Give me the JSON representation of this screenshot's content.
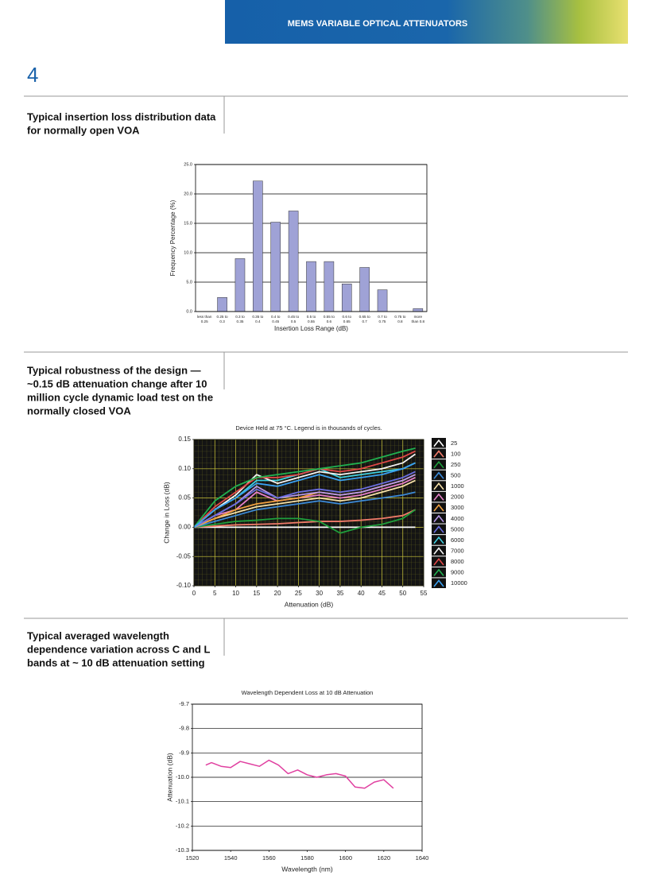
{
  "header": {
    "title": "MEMS VARIABLE OPTICAL ATTENUATORS"
  },
  "page_number": "4",
  "sections": [
    {
      "caption": [
        "Typical insertion loss distribution data",
        "for normally open VOA"
      ]
    },
    {
      "caption": [
        "Typical robustness of the design —",
        "~0.15 dB attenuation change after 10",
        "million cycle dynamic load test on the",
        "normally closed VOA"
      ]
    },
    {
      "caption": [
        "Typical averaged wavelength",
        "dependence variation across C and L",
        "bands at ~ 10 dB attenuation setting"
      ]
    }
  ],
  "chart_data": [
    {
      "type": "bar",
      "xlabel": "Insertion Loss Range (dB)",
      "ylabel": "Frequency Percentage (%)",
      "categories": [
        [
          "less than",
          "0.25"
        ],
        [
          "0.25 to",
          "0.3"
        ],
        [
          "0.3 to",
          "0.35"
        ],
        [
          "0.35 to",
          "0.4"
        ],
        [
          "0.4 to",
          "0.45"
        ],
        [
          "0.45 to",
          "0.5"
        ],
        [
          "0.5 to",
          "0.55"
        ],
        [
          "0.55 to",
          "0.6"
        ],
        [
          "0.6 to",
          "0.65"
        ],
        [
          "0.65 to",
          "0.7"
        ],
        [
          "0.7 to",
          "0.75"
        ],
        [
          "0.75 to",
          "0.8"
        ],
        [
          "more",
          "than 0.8"
        ]
      ],
      "values": [
        0,
        2.4,
        9.0,
        22.2,
        15.2,
        17.1,
        8.5,
        8.5,
        4.7,
        7.5,
        3.7,
        0,
        0.5
      ],
      "color": "#9fa2d6",
      "ylim": [
        0,
        25
      ],
      "yticks": [
        {
          "value": 0,
          "label": "0.0"
        },
        {
          "value": 5,
          "label": "5.0"
        },
        {
          "value": 10,
          "label": "10.0"
        },
        {
          "value": 15,
          "label": "15.0"
        },
        {
          "value": 20,
          "label": "20.0"
        },
        {
          "value": 25,
          "label": "25.0"
        }
      ],
      "grid": "y",
      "grid_color": "#000000"
    },
    {
      "type": "line",
      "title": "Device Held at 75 °C.  Legend is in thousands of cycles.",
      "xlabel": "Attenuation (dB)",
      "ylabel": "Change in Loss (dB)",
      "x": [
        0,
        5,
        10,
        15,
        20,
        25,
        30,
        35,
        40,
        45,
        50,
        53
      ],
      "series": [
        {
          "name": "25",
          "color": "#ffffff",
          "values": [
            0,
            0,
            0,
            0,
            0,
            0,
            0,
            0,
            0,
            0,
            0,
            0
          ]
        },
        {
          "name": "100",
          "color": "#f07b6a",
          "values": [
            0,
            0.002,
            0.004,
            0.005,
            0.006,
            0.008,
            0.01,
            0.01,
            0.012,
            0.015,
            0.02,
            0.03
          ]
        },
        {
          "name": "250",
          "color": "#1e9e3c",
          "values": [
            0,
            0.005,
            0.01,
            0.012,
            0.015,
            0.015,
            0.01,
            -0.01,
            0,
            0.005,
            0.015,
            0.03
          ]
        },
        {
          "name": "500",
          "color": "#3c8ad8",
          "values": [
            0,
            0.01,
            0.02,
            0.03,
            0.035,
            0.04,
            0.045,
            0.04,
            0.045,
            0.05,
            0.055,
            0.06
          ]
        },
        {
          "name": "1000",
          "color": "#f6e0a8",
          "values": [
            0,
            0.015,
            0.025,
            0.035,
            0.04,
            0.045,
            0.05,
            0.045,
            0.05,
            0.06,
            0.07,
            0.08
          ]
        },
        {
          "name": "2000",
          "color": "#e680c8",
          "values": [
            0,
            0.02,
            0.03,
            0.06,
            0.045,
            0.05,
            0.055,
            0.05,
            0.055,
            0.065,
            0.075,
            0.085
          ]
        },
        {
          "name": "3000",
          "color": "#f0a040",
          "values": [
            0,
            0.015,
            0.03,
            0.04,
            0.045,
            0.05,
            0.06,
            0.055,
            0.06,
            0.07,
            0.08,
            0.09
          ]
        },
        {
          "name": "4000",
          "color": "#b898e8",
          "values": [
            0,
            0.02,
            0.04,
            0.07,
            0.05,
            0.055,
            0.06,
            0.055,
            0.06,
            0.07,
            0.08,
            0.09
          ]
        },
        {
          "name": "5000",
          "color": "#6a6ee0",
          "values": [
            0,
            0.02,
            0.04,
            0.065,
            0.05,
            0.06,
            0.065,
            0.06,
            0.065,
            0.075,
            0.085,
            0.095
          ]
        },
        {
          "name": "6000",
          "color": "#40d0e0",
          "values": [
            0,
            0.03,
            0.05,
            0.08,
            0.08,
            0.09,
            0.1,
            0.085,
            0.09,
            0.095,
            0.1,
            0.11
          ]
        },
        {
          "name": "7000",
          "color": "#f4f4f4",
          "values": [
            0,
            0.03,
            0.055,
            0.09,
            0.075,
            0.085,
            0.095,
            0.09,
            0.095,
            0.1,
            0.11,
            0.125
          ]
        },
        {
          "name": "8000",
          "color": "#e04848",
          "values": [
            0,
            0.035,
            0.06,
            0.085,
            0.085,
            0.09,
            0.1,
            0.095,
            0.1,
            0.11,
            0.12,
            0.13
          ]
        },
        {
          "name": "9000",
          "color": "#20b050",
          "values": [
            0,
            0.045,
            0.07,
            0.085,
            0.09,
            0.095,
            0.1,
            0.105,
            0.11,
            0.12,
            0.13,
            0.135
          ]
        },
        {
          "name": "10000",
          "color": "#3aa0f0",
          "values": [
            0,
            0.03,
            0.05,
            0.075,
            0.07,
            0.08,
            0.09,
            0.08,
            0.085,
            0.09,
            0.1,
            0.11
          ]
        }
      ],
      "xlim": [
        0,
        55
      ],
      "xticks": [
        0,
        5,
        10,
        15,
        20,
        25,
        30,
        35,
        40,
        45,
        50,
        55
      ],
      "ylim": [
        -0.1,
        0.15
      ],
      "yticks": [
        {
          "value": -0.1,
          "label": "-0.10"
        },
        -0.05,
        {
          "value": 0,
          "label": "0.00"
        },
        0.05,
        {
          "value": 0.1,
          "label": "0.10"
        },
        0.15
      ],
      "grid": "both",
      "grid_color": "#c8c23a",
      "plot_background": "#141414",
      "legend": "right"
    },
    {
      "type": "line",
      "title": "Wavelength Dependent Loss at 10 dB Attenuation",
      "xlabel": "Wavelength (nm)",
      "ylabel": "Attenuation (dB)",
      "x": [
        1527,
        1530,
        1535,
        1540,
        1545,
        1550,
        1555,
        1560,
        1565,
        1570,
        1575,
        1580,
        1585,
        1590,
        1595,
        1600,
        1605,
        1610,
        1615,
        1620,
        1625
      ],
      "series": [
        {
          "color": "#e040a0",
          "values": [
            -9.95,
            -9.94,
            -9.955,
            -9.96,
            -9.935,
            -9.945,
            -9.955,
            -9.93,
            -9.95,
            -9.985,
            -9.97,
            -9.99,
            -10.0,
            -9.99,
            -9.985,
            -9.995,
            -10.04,
            -10.045,
            -10.02,
            -10.01,
            -10.045
          ]
        }
      ],
      "xlim": [
        1520,
        1640
      ],
      "xticks": [
        1520,
        1540,
        1560,
        1580,
        1600,
        1620,
        1640
      ],
      "ylim": [
        -10.3,
        -9.7
      ],
      "yticks": [
        -10.3,
        -10.2,
        -10.1,
        {
          "value": -10.0,
          "label": "-10.0"
        },
        -9.9,
        -9.8,
        -9.7
      ],
      "grid": "y",
      "grid_color": "#000000"
    }
  ]
}
